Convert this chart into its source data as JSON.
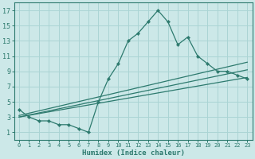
{
  "xlabel": "Humidex (Indice chaleur)",
  "bg_color": "#cce8e8",
  "grid_color": "#aad4d4",
  "line_color": "#2d7a6e",
  "xlim": [
    -0.5,
    23.5
  ],
  "ylim": [
    0,
    18
  ],
  "xticks": [
    0,
    1,
    2,
    3,
    4,
    5,
    6,
    7,
    8,
    9,
    10,
    11,
    12,
    13,
    14,
    15,
    16,
    17,
    18,
    19,
    20,
    21,
    22,
    23
  ],
  "yticks": [
    1,
    3,
    5,
    7,
    9,
    11,
    13,
    15,
    17
  ],
  "main_line_x": [
    0,
    1,
    2,
    3,
    4,
    5,
    6,
    7,
    8,
    9,
    10,
    11,
    12,
    13,
    14,
    15,
    16,
    17,
    18,
    19,
    20,
    21,
    22,
    23
  ],
  "main_line_y": [
    4,
    3,
    2.5,
    2.5,
    2,
    2,
    1.5,
    1,
    5,
    8,
    10,
    13,
    14,
    15.5,
    17,
    15.5,
    12.5,
    13.5,
    11,
    10,
    9,
    9,
    8.5,
    8
  ],
  "line2_x": [
    0,
    23
  ],
  "line2_y": [
    3.2,
    10.2
  ],
  "line3_x": [
    0,
    23
  ],
  "line3_y": [
    3.0,
    9.2
  ],
  "line4_x": [
    0,
    23
  ],
  "line4_y": [
    3.0,
    8.2
  ]
}
